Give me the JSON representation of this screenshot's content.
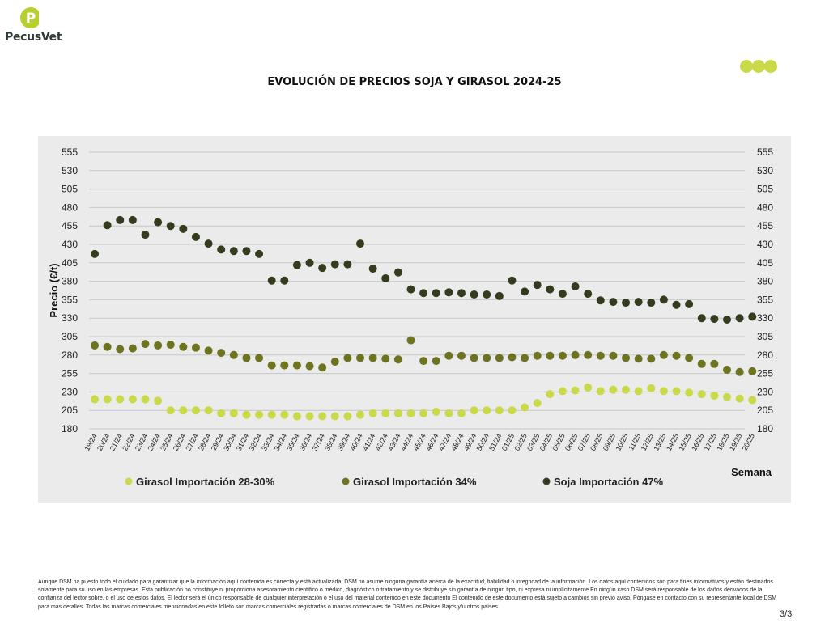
{
  "header": {
    "brand": "PecusVet"
  },
  "page_number": "3/3",
  "disclaimer": "Aunque DSM ha puesto todo el cuidado para garantizar que la información aquí contenida es correcta y está actualizada, DSM no asume ninguna garantía acerca de la exactitud, fiabilidad o integridad de la información. Los datos aquí contenidos son para fines informativos y están destinados solamente para su uso en las empresas. Esta publicación no constituye ni proporciona asesoramiento científico o médico, diagnóstico o tratamiento y se distribuye sin garantía de ningún tipo, ni expresa ni implícitamente En ningún caso DSM será responsable de los daños derivados de la confianza del lector sobre, o el uso de estos datos. El lector será el único responsable de cualquier interpretación o el uso del material contenido en este documento El contenido de este documento está sujeto a cambios sin previo aviso. Póngase en contacto con su representante local de DSM para más detalles. Todas las marcas comerciales mencionadas en este folleto son marcas comerciales registradas o marcas comerciales de DSM en los Países Bajos y/u otros países.",
  "colors": {
    "girasol_28": "#c9d94a",
    "girasol_34": "#6e7320",
    "soja_47": "#343c1e",
    "panel_bg": "#ebebeb",
    "grid": "#c7c7c7"
  },
  "chart_data": {
    "type": "scatter",
    "title": "EVOLUCIÓN DE PRECIOS SOJA Y GIRASOL 2024-25",
    "xlabel": "Semana",
    "ylabel": "Precio (€/t)",
    "ylim": [
      180,
      555
    ],
    "yticks": [
      180,
      205,
      230,
      255,
      280,
      305,
      330,
      355,
      380,
      405,
      430,
      455,
      480,
      505,
      530,
      555
    ],
    "grid": true,
    "legend_position": "bottom",
    "categories": [
      "19/24",
      "20/24",
      "21/24",
      "22/24",
      "23/24",
      "24/24",
      "25/24",
      "26/24",
      "27/24",
      "28/24",
      "29/24",
      "30/24",
      "31/24",
      "32/24",
      "33/24",
      "34/24",
      "35/24",
      "36/24",
      "37/24",
      "38/24",
      "39/24",
      "40/24",
      "41/24",
      "42/24",
      "43/24",
      "44/24",
      "45/24",
      "46/24",
      "47/24",
      "48/24",
      "49/24",
      "50/24",
      "51/24",
      "01/25",
      "02/25",
      "03/25",
      "04/25",
      "05/25",
      "06/25",
      "07/25",
      "08/25",
      "09/25",
      "10/25",
      "11/25",
      "12/25",
      "13/25",
      "14/25",
      "15/25",
      "16/25",
      "17/25",
      "18/25",
      "19/25",
      "20/25"
    ],
    "series": [
      {
        "name": "Girasol Importación 28-30%",
        "color": "#c9d94a",
        "values": [
          220,
          220,
          220,
          220,
          220,
          218,
          205,
          205,
          205,
          205,
          201,
          201,
          199,
          199,
          199,
          199,
          197,
          197,
          197,
          197,
          197,
          199,
          201,
          201,
          201,
          201,
          201,
          203,
          201,
          201,
          205,
          205,
          205,
          205,
          209,
          215,
          227,
          231,
          232,
          236,
          231,
          233,
          233,
          231,
          235,
          231,
          231,
          229,
          227,
          225,
          223,
          221,
          219
        ]
      },
      {
        "name": "Girasol Importación 34%",
        "color": "#6e7320",
        "values": [
          293,
          291,
          288,
          289,
          295,
          293,
          294,
          291,
          290,
          286,
          283,
          280,
          276,
          276,
          266,
          266,
          266,
          265,
          263,
          271,
          276,
          276,
          276,
          275,
          274,
          300,
          272,
          272,
          279,
          279,
          276,
          276,
          276,
          277,
          276,
          279,
          279,
          279,
          280,
          280,
          279,
          279,
          276,
          275,
          275,
          280,
          279,
          276,
          268,
          268,
          260,
          257,
          258
        ]
      },
      {
        "name": "Soja Importación 47%",
        "color": "#343c1e",
        "values": [
          417,
          456,
          463,
          463,
          443,
          460,
          455,
          451,
          440,
          431,
          423,
          421,
          421,
          417,
          381,
          381,
          402,
          405,
          398,
          403,
          403,
          431,
          397,
          384,
          392,
          369,
          364,
          364,
          365,
          364,
          362,
          362,
          360,
          381,
          366,
          375,
          369,
          363,
          373,
          363,
          354,
          352,
          351,
          352,
          351,
          355,
          348,
          349,
          330,
          329,
          328,
          330,
          332
        ]
      }
    ]
  }
}
